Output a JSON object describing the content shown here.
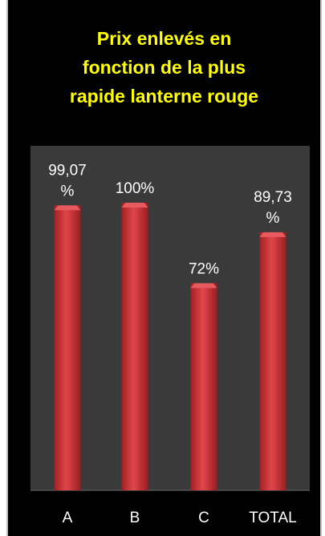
{
  "chart_data": {
    "type": "bar",
    "title": [
      "Prix enlevés en",
      "fonction de la plus",
      "rapide lanterne rouge"
    ],
    "categories": [
      "A",
      "B",
      "C",
      "TOTAL"
    ],
    "values": [
      99.07,
      100,
      72,
      89.73
    ],
    "data_labels": [
      [
        "99,07",
        "%"
      ],
      [
        "100%"
      ],
      [
        "72%"
      ],
      [
        "89,73",
        "%"
      ]
    ],
    "ylim": [
      0,
      100
    ],
    "grid": false,
    "legend": "none",
    "colors": {
      "bar": "#d6363b",
      "bar_light": "#e85a5e",
      "bar_dark": "#a01f24",
      "plot_bg": "#3a3a3a",
      "panel_bg": "#000000",
      "title": "#ffff00",
      "label": "#ffffff"
    }
  }
}
